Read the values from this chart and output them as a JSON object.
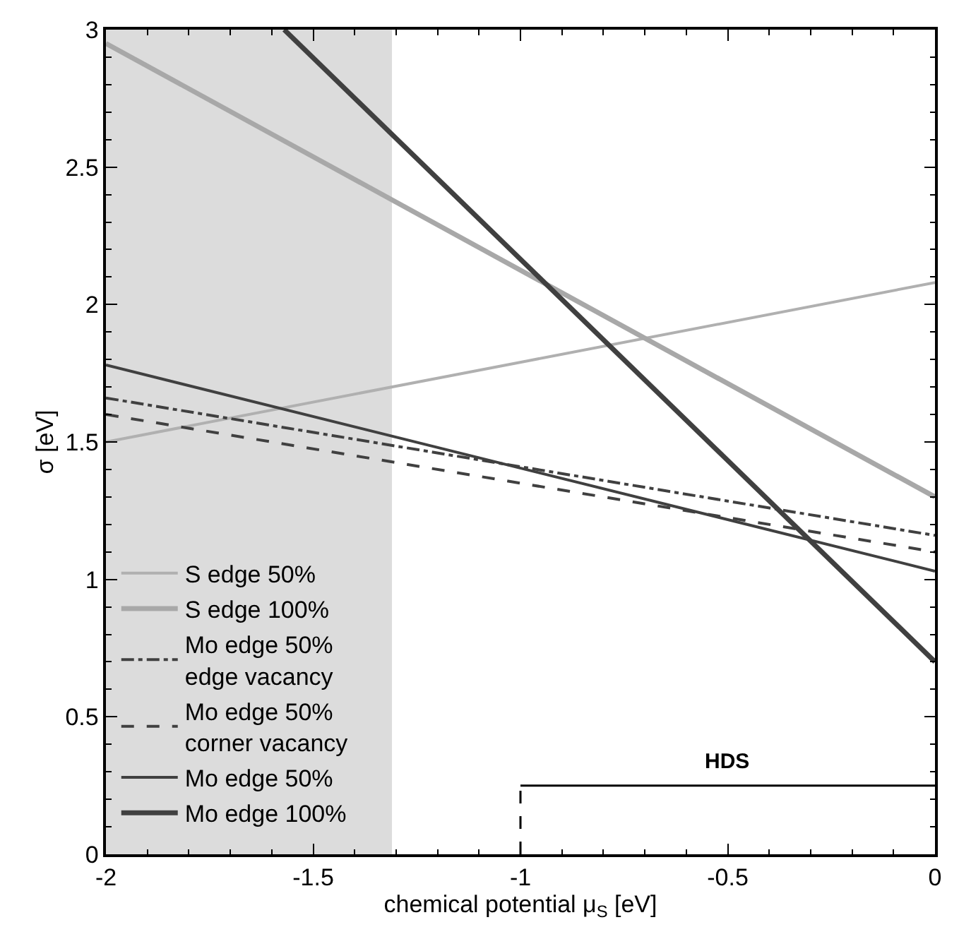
{
  "chart_data": {
    "type": "line",
    "xlabel": "chemical potential μ$_{S}$ [eV]",
    "ylabel": "σ [eV]",
    "xlim": [
      -2,
      0
    ],
    "ylim": [
      0,
      3
    ],
    "xticks": [
      -2,
      -1.5,
      -1,
      -0.5,
      0
    ],
    "yticks": [
      0,
      0.5,
      1,
      1.5,
      2,
      2.5,
      3
    ],
    "grid": false,
    "legend": "left",
    "marker": "none",
    "series": [
      {
        "name": "S edge 50%",
        "color": "#b0b0b0",
        "x": [
          -2,
          0
        ],
        "values": [
          1.5,
          2.08
        ],
        "line_style": "solid"
      },
      {
        "name": "S edge 100%",
        "color": "#a8a8a8",
        "x": [
          -2,
          0
        ],
        "values": [
          2.95,
          1.3
        ],
        "line_style": "solid"
      },
      {
        "name": "Mo edge 50%\nedge vacancy",
        "color": "#404040",
        "x": [
          -2,
          0
        ],
        "values": [
          1.66,
          1.16
        ],
        "line_style": "dashdot"
      },
      {
        "name": "Mo edge 50%\ncorner vacancy",
        "color": "#404040",
        "x": [
          -2,
          0
        ],
        "values": [
          1.6,
          1.1
        ],
        "line_style": "dashed"
      },
      {
        "name": "Mo edge 50%",
        "color": "#404040",
        "x": [
          -2,
          0
        ],
        "values": [
          1.78,
          1.03
        ],
        "line_style": "solid"
      },
      {
        "name": "Mo edge 100%",
        "color": "#404040",
        "x": [
          -1.57,
          0
        ],
        "values": [
          3,
          0.7
        ],
        "line_style": "solid"
      }
    ],
    "bands": [
      {
        "axis": "x",
        "from": -2,
        "to": -1.31,
        "color": "#dcdcdc"
      }
    ],
    "ref_lines": [
      {
        "axis": "x",
        "value": -1,
        "line_style": "dashed",
        "color": "#000000"
      },
      {
        "axis": "y",
        "value": 0.25,
        "label": "HDS",
        "line_style": "solid",
        "color": "#000000"
      }
    ]
  }
}
